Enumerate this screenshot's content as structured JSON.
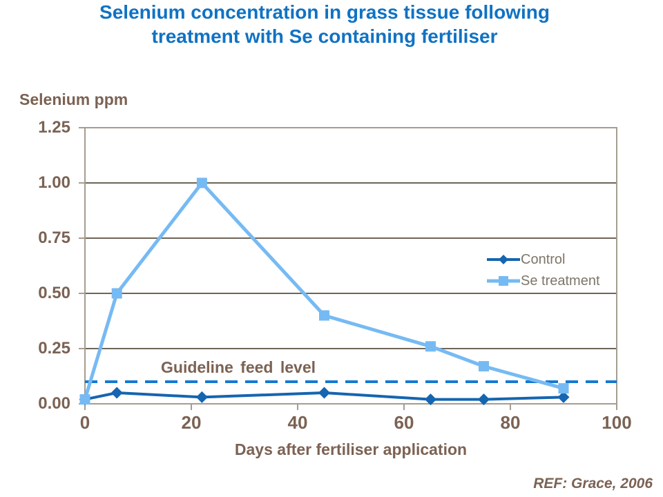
{
  "title": {
    "line1": "Selenium concentration in grass tissue following",
    "line2": "treatment with Se containing fertiliser"
  },
  "reference": "REF: Grace, 2006",
  "guideline_label": "Guideline feed level",
  "colors": {
    "title": "#1072c3",
    "axis_text": "#7b6253",
    "legend_text": "#7d7569",
    "grid": "#6f6456",
    "axis_line": "#a59c8f",
    "guideline": "#1778d2",
    "background": "#ffffff"
  },
  "chart_data": {
    "type": "line",
    "title": "Selenium concentration in grass tissue following treatment with Se containing fertiliser",
    "xlabel": "Days after fertiliser application",
    "ylabel": "Selenium ppm",
    "x": [
      0,
      6,
      22,
      45,
      65,
      75,
      90
    ],
    "series": [
      {
        "name": "Control",
        "values": [
          0.02,
          0.05,
          0.03,
          0.05,
          0.02,
          0.02,
          0.03
        ],
        "color": "#1565b0",
        "marker": "diamond"
      },
      {
        "name": "Se treatment",
        "values": [
          0.02,
          0.5,
          1.0,
          0.4,
          0.26,
          0.17,
          0.07
        ],
        "color": "#76baf3",
        "marker": "square"
      }
    ],
    "annotations": [
      {
        "type": "hline",
        "y": 0.1,
        "style": "dashed",
        "color": "#1778d2",
        "label": "Guideline feed level"
      }
    ],
    "xlim": [
      0,
      100
    ],
    "ylim": [
      0,
      1.25
    ],
    "x_ticks": [
      {
        "label": "0",
        "value": 0
      },
      {
        "label": "20",
        "value": 20
      },
      {
        "label": "40",
        "value": 40
      },
      {
        "label": "60",
        "value": 60
      },
      {
        "label": "80",
        "value": 80
      },
      {
        "label": "100",
        "value": 100
      }
    ],
    "y_ticks": [
      {
        "label": "0.00",
        "value": 0
      },
      {
        "label": "0.25",
        "value": 0.25
      },
      {
        "label": "0.50",
        "value": 0.5
      },
      {
        "label": "0.75",
        "value": 0.75
      },
      {
        "label": "1.00",
        "value": 1.0
      },
      {
        "label": "1.25",
        "value": 1.25
      }
    ],
    "grid": "horizontal",
    "legend_position": "inside-right"
  }
}
